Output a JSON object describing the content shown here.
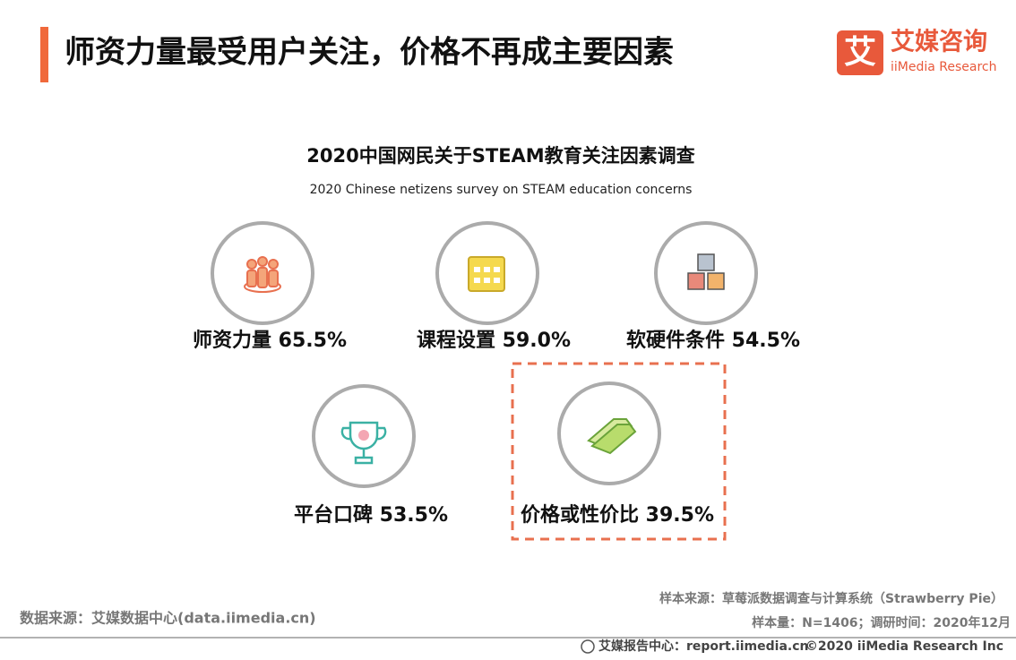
{
  "header": {
    "title": "师资力量最受用户关注，价格不再成主要因素"
  },
  "logo": {
    "mark": "艾",
    "name": "艾媒咨询",
    "english": "iiMedia Research"
  },
  "survey": {
    "title": "2020中国网民关于STEAM教育关注因素调查",
    "subtitle": "2020 Chinese netizens survey on STEAM education concerns",
    "items": [
      {
        "label": "师资力量",
        "value": "65.5%"
      },
      {
        "label": "课程设置",
        "value": "59.0%"
      },
      {
        "label": "软硬件条件",
        "value": "54.5%"
      },
      {
        "label": "平台口碑",
        "value": "53.5%"
      },
      {
        "label": "价格或性价比",
        "value": "39.5%"
      }
    ]
  },
  "footer": {
    "source": "数据来源：艾媒数据中心(data.iimedia.cn)",
    "sample_source": "样本来源：草莓派数据调查与计算系统（Strawberry Pie）",
    "sample_size": "样本量：N=1406；调研时间：2020年12月",
    "report_center": "艾媒报告中心：report.iimedia.cn",
    "copyright": "©2020 iiMedia Research Inc"
  }
}
